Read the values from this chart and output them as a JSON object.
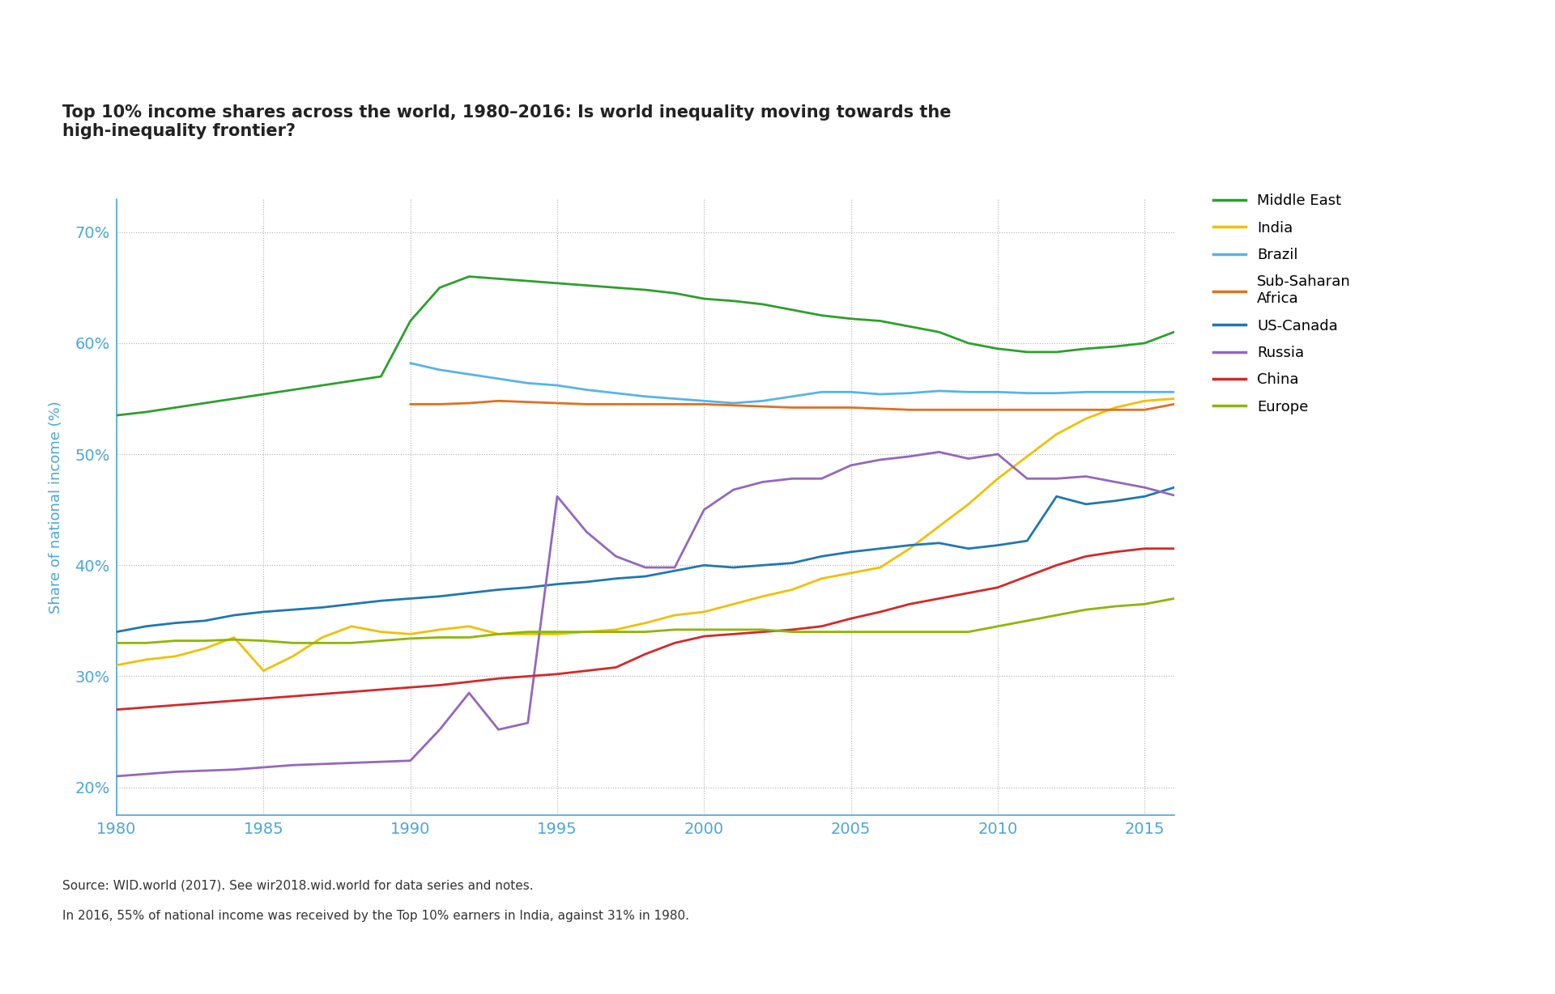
{
  "title": "Top 10% income shares across the world, 1980–2016: Is world inequality moving towards the\nhigh-inequality frontier?",
  "ylabel": "Share of national income (%)",
  "source_line1": "Source: WID.world (2017). See wir2018.wid.world for data series and notes.",
  "source_line2": "In 2016, 55% of national income was received by the Top 10% earners in India, against 31% in 1980.",
  "xlim": [
    1980,
    2016
  ],
  "ylim": [
    0.175,
    0.73
  ],
  "yticks": [
    0.2,
    0.3,
    0.4,
    0.5,
    0.6,
    0.7
  ],
  "xticks": [
    1980,
    1985,
    1990,
    1995,
    2000,
    2005,
    2010,
    2015
  ],
  "series": {
    "Middle East": {
      "color": "#2ca02c",
      "years": [
        1980,
        1981,
        1982,
        1983,
        1984,
        1985,
        1986,
        1987,
        1988,
        1989,
        1990,
        1991,
        1992,
        1993,
        1994,
        1995,
        1996,
        1997,
        1998,
        1999,
        2000,
        2001,
        2002,
        2003,
        2004,
        2005,
        2006,
        2007,
        2008,
        2009,
        2010,
        2011,
        2012,
        2013,
        2014,
        2015,
        2016
      ],
      "values": [
        0.535,
        0.538,
        0.542,
        0.546,
        0.55,
        0.554,
        0.558,
        0.562,
        0.566,
        0.57,
        0.62,
        0.65,
        0.66,
        0.658,
        0.656,
        0.654,
        0.652,
        0.65,
        0.648,
        0.645,
        0.64,
        0.638,
        0.635,
        0.63,
        0.625,
        0.622,
        0.62,
        0.615,
        0.61,
        0.6,
        0.595,
        0.592,
        0.592,
        0.595,
        0.597,
        0.6,
        0.61
      ]
    },
    "India": {
      "color": "#f0c000",
      "years": [
        1980,
        1981,
        1982,
        1983,
        1984,
        1985,
        1986,
        1987,
        1988,
        1989,
        1990,
        1991,
        1992,
        1993,
        1994,
        1995,
        1996,
        1997,
        1998,
        1999,
        2000,
        2001,
        2002,
        2003,
        2004,
        2005,
        2006,
        2007,
        2008,
        2009,
        2010,
        2011,
        2012,
        2013,
        2014,
        2015,
        2016
      ],
      "values": [
        0.31,
        0.315,
        0.318,
        0.325,
        0.335,
        0.305,
        0.318,
        0.335,
        0.345,
        0.34,
        0.338,
        0.342,
        0.345,
        0.338,
        0.338,
        0.338,
        0.34,
        0.342,
        0.348,
        0.355,
        0.358,
        0.365,
        0.372,
        0.378,
        0.388,
        0.393,
        0.398,
        0.415,
        0.435,
        0.455,
        0.478,
        0.498,
        0.518,
        0.532,
        0.542,
        0.548,
        0.55
      ]
    },
    "Brazil": {
      "color": "#56b4e9",
      "years": [
        1990,
        1991,
        1992,
        1993,
        1994,
        1995,
        1996,
        1997,
        1998,
        1999,
        2000,
        2001,
        2002,
        2003,
        2004,
        2005,
        2006,
        2007,
        2008,
        2009,
        2010,
        2011,
        2012,
        2013,
        2014,
        2015,
        2016
      ],
      "values": [
        0.582,
        0.576,
        0.572,
        0.568,
        0.564,
        0.562,
        0.558,
        0.555,
        0.552,
        0.55,
        0.548,
        0.546,
        0.548,
        0.552,
        0.556,
        0.556,
        0.554,
        0.555,
        0.557,
        0.556,
        0.556,
        0.555,
        0.555,
        0.556,
        0.556,
        0.556,
        0.556
      ]
    },
    "Sub-Saharan Africa": {
      "color": "#e07020",
      "years": [
        1990,
        1991,
        1992,
        1993,
        1994,
        1995,
        1996,
        1997,
        1998,
        1999,
        2000,
        2001,
        2002,
        2003,
        2004,
        2005,
        2006,
        2007,
        2008,
        2009,
        2010,
        2011,
        2012,
        2013,
        2014,
        2015,
        2016
      ],
      "values": [
        0.545,
        0.545,
        0.546,
        0.548,
        0.547,
        0.546,
        0.545,
        0.545,
        0.545,
        0.545,
        0.545,
        0.544,
        0.543,
        0.542,
        0.542,
        0.542,
        0.541,
        0.54,
        0.54,
        0.54,
        0.54,
        0.54,
        0.54,
        0.54,
        0.54,
        0.54,
        0.545
      ]
    },
    "US-Canada": {
      "color": "#1f77b4",
      "years": [
        1980,
        1981,
        1982,
        1983,
        1984,
        1985,
        1986,
        1987,
        1988,
        1989,
        1990,
        1991,
        1992,
        1993,
        1994,
        1995,
        1996,
        1997,
        1998,
        1999,
        2000,
        2001,
        2002,
        2003,
        2004,
        2005,
        2006,
        2007,
        2008,
        2009,
        2010,
        2011,
        2012,
        2013,
        2014,
        2015,
        2016
      ],
      "values": [
        0.34,
        0.345,
        0.348,
        0.35,
        0.355,
        0.358,
        0.36,
        0.362,
        0.365,
        0.368,
        0.37,
        0.372,
        0.375,
        0.378,
        0.38,
        0.383,
        0.385,
        0.388,
        0.39,
        0.395,
        0.4,
        0.398,
        0.4,
        0.402,
        0.408,
        0.412,
        0.415,
        0.418,
        0.42,
        0.415,
        0.418,
        0.422,
        0.462,
        0.455,
        0.458,
        0.462,
        0.47
      ]
    },
    "Russia": {
      "color": "#9467bd",
      "years": [
        1980,
        1981,
        1982,
        1983,
        1984,
        1985,
        1986,
        1987,
        1988,
        1989,
        1990,
        1991,
        1992,
        1993,
        1994,
        1995,
        1996,
        1997,
        1998,
        1999,
        2000,
        2001,
        2002,
        2003,
        2004,
        2005,
        2006,
        2007,
        2008,
        2009,
        2010,
        2011,
        2012,
        2013,
        2014,
        2015,
        2016
      ],
      "values": [
        0.21,
        0.212,
        0.214,
        0.215,
        0.216,
        0.218,
        0.22,
        0.221,
        0.222,
        0.223,
        0.224,
        0.252,
        0.285,
        0.252,
        0.258,
        0.462,
        0.43,
        0.408,
        0.398,
        0.398,
        0.45,
        0.468,
        0.475,
        0.478,
        0.478,
        0.49,
        0.495,
        0.498,
        0.502,
        0.496,
        0.5,
        0.478,
        0.478,
        0.48,
        0.475,
        0.47,
        0.463
      ]
    },
    "China": {
      "color": "#d62728",
      "years": [
        1980,
        1981,
        1982,
        1983,
        1984,
        1985,
        1986,
        1987,
        1988,
        1989,
        1990,
        1991,
        1992,
        1993,
        1994,
        1995,
        1996,
        1997,
        1998,
        1999,
        2000,
        2001,
        2002,
        2003,
        2004,
        2005,
        2006,
        2007,
        2008,
        2009,
        2010,
        2011,
        2012,
        2013,
        2014,
        2015,
        2016
      ],
      "values": [
        0.27,
        0.272,
        0.274,
        0.276,
        0.278,
        0.28,
        0.282,
        0.284,
        0.286,
        0.288,
        0.29,
        0.292,
        0.295,
        0.298,
        0.3,
        0.302,
        0.305,
        0.308,
        0.32,
        0.33,
        0.336,
        0.338,
        0.34,
        0.342,
        0.345,
        0.352,
        0.358,
        0.365,
        0.37,
        0.375,
        0.38,
        0.39,
        0.4,
        0.408,
        0.412,
        0.415,
        0.415
      ]
    },
    "Europe": {
      "color": "#8db600",
      "years": [
        1980,
        1981,
        1982,
        1983,
        1984,
        1985,
        1986,
        1987,
        1988,
        1989,
        1990,
        1991,
        1992,
        1993,
        1994,
        1995,
        1996,
        1997,
        1998,
        1999,
        2000,
        2001,
        2002,
        2003,
        2004,
        2005,
        2006,
        2007,
        2008,
        2009,
        2010,
        2011,
        2012,
        2013,
        2014,
        2015,
        2016
      ],
      "values": [
        0.33,
        0.33,
        0.332,
        0.332,
        0.333,
        0.332,
        0.33,
        0.33,
        0.33,
        0.332,
        0.334,
        0.335,
        0.335,
        0.338,
        0.34,
        0.34,
        0.34,
        0.34,
        0.34,
        0.342,
        0.342,
        0.342,
        0.342,
        0.34,
        0.34,
        0.34,
        0.34,
        0.34,
        0.34,
        0.34,
        0.345,
        0.35,
        0.355,
        0.36,
        0.363,
        0.365,
        0.37
      ]
    }
  },
  "legend_order": [
    "Middle East",
    "India",
    "Brazil",
    "Sub-Saharan Africa",
    "US-Canada",
    "Russia",
    "China",
    "Europe"
  ],
  "legend_labels": [
    "Middle East",
    "India",
    "Brazil",
    "Sub-Saharan\nAfrica",
    "US-Canada",
    "Russia",
    "China",
    "Europe"
  ]
}
